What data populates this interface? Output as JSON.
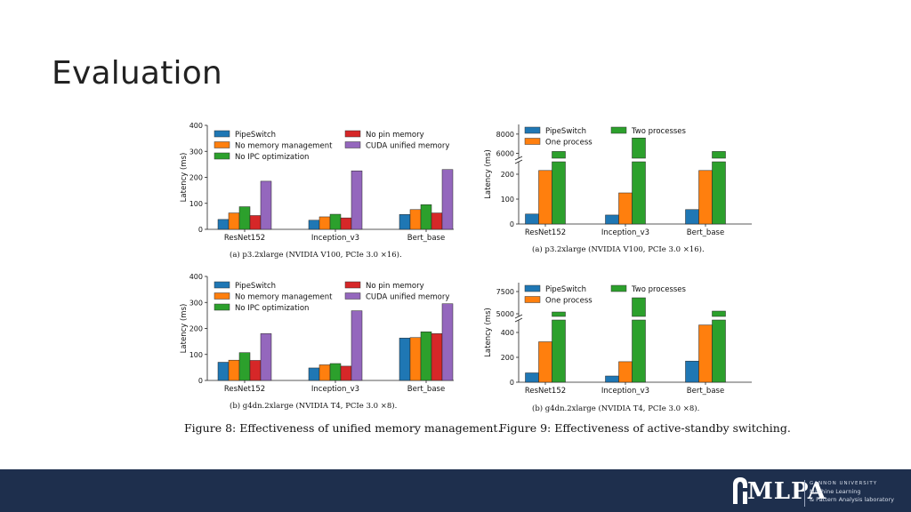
{
  "slide": {
    "title": "Evaluation"
  },
  "figures": {
    "fig8_caption": "Figure 8: Effectiveness of unified memory management.",
    "fig9_caption": "Figure 9: Effectiveness of active-standby switching."
  },
  "footer": {
    "logo_text": "MLPA",
    "logo_line1": "GANNON UNIVERSITY",
    "logo_line2": "Machine Learning",
    "logo_line3": "& Pattern Analysis laboratory",
    "background": "#1e2f4d"
  },
  "chart_data": [
    {
      "id": "fig8a",
      "type": "bar",
      "title": "",
      "caption": "(a) p3.2xlarge (NVIDIA V100, PCIe 3.0 ×16).",
      "xlabel": "",
      "ylabel": "Latency (ms)",
      "categories": [
        "ResNet152",
        "Inception_v3",
        "Bert_base"
      ],
      "ylim": [
        0,
        400
      ],
      "yticks": [
        0,
        100,
        200,
        300,
        400
      ],
      "series": [
        {
          "name": "PipeSwitch",
          "color": "#1f77b4",
          "values": [
            38,
            35,
            57
          ]
        },
        {
          "name": "No memory management",
          "color": "#ff7f0e",
          "values": [
            63,
            48,
            76
          ]
        },
        {
          "name": "No IPC optimization",
          "color": "#2ca02c",
          "values": [
            87,
            58,
            95
          ]
        },
        {
          "name": "No pin memory",
          "color": "#d62728",
          "values": [
            53,
            44,
            63
          ]
        },
        {
          "name": "CUDA unified memory",
          "color": "#9467bd",
          "values": [
            185,
            225,
            230
          ]
        }
      ],
      "legend_order": [
        "PipeSwitch",
        "No pin memory",
        "No memory management",
        "CUDA unified memory",
        "No IPC optimization"
      ]
    },
    {
      "id": "fig8b",
      "type": "bar",
      "title": "",
      "caption": "(b) g4dn.2xlarge (NVIDIA T4, PCIe 3.0 ×8).",
      "xlabel": "",
      "ylabel": "Latency (ms)",
      "categories": [
        "ResNet152",
        "Inception_v3",
        "Bert_base"
      ],
      "ylim": [
        0,
        400
      ],
      "yticks": [
        0,
        100,
        200,
        300,
        400
      ],
      "series": [
        {
          "name": "PipeSwitch",
          "color": "#1f77b4",
          "values": [
            70,
            48,
            163
          ]
        },
        {
          "name": "No memory management",
          "color": "#ff7f0e",
          "values": [
            78,
            60,
            165
          ]
        },
        {
          "name": "No IPC optimization",
          "color": "#2ca02c",
          "values": [
            107,
            65,
            187
          ]
        },
        {
          "name": "No pin memory",
          "color": "#d62728",
          "values": [
            77,
            55,
            180
          ]
        },
        {
          "name": "CUDA unified memory",
          "color": "#9467bd",
          "values": [
            180,
            268,
            295
          ]
        }
      ],
      "legend_order": [
        "PipeSwitch",
        "No pin memory",
        "No memory management",
        "CUDA unified memory",
        "No IPC optimization"
      ]
    },
    {
      "id": "fig9a",
      "type": "bar",
      "broken_axis": true,
      "title": "",
      "caption": "(a) p3.2xlarge (NVIDIA V100, PCIe 3.0 ×16).",
      "xlabel": "",
      "ylabel": "Latency (ms)",
      "categories": [
        "ResNet152",
        "Inception_v3",
        "Bert_base"
      ],
      "lower_ylim": [
        0,
        250
      ],
      "lower_ticks": [
        0,
        100,
        200
      ],
      "upper_ylim": [
        5500,
        9000
      ],
      "upper_ticks": [
        6000,
        8000
      ],
      "series": [
        {
          "name": "PipeSwitch",
          "color": "#1f77b4",
          "values": [
            40,
            36,
            58
          ]
        },
        {
          "name": "One process",
          "color": "#ff7f0e",
          "values": [
            215,
            125,
            215
          ]
        },
        {
          "name": "Two processes",
          "color": "#2ca02c",
          "values": [
            6200,
            7600,
            6200
          ]
        }
      ],
      "legend_order": [
        "PipeSwitch",
        "Two processes",
        "One process"
      ]
    },
    {
      "id": "fig9b",
      "type": "bar",
      "broken_axis": true,
      "title": "",
      "caption": "(b) g4dn.2xlarge (NVIDIA T4, PCIe 3.0 ×8).",
      "xlabel": "",
      "ylabel": "Latency (ms)",
      "categories": [
        "ResNet152",
        "Inception_v3",
        "Bert_base"
      ],
      "lower_ylim": [
        0,
        500
      ],
      "lower_ticks": [
        0,
        200,
        400
      ],
      "upper_ylim": [
        4700,
        8500
      ],
      "upper_ticks": [
        5000,
        7500
      ],
      "series": [
        {
          "name": "PipeSwitch",
          "color": "#1f77b4",
          "values": [
            75,
            50,
            170
          ]
        },
        {
          "name": "One process",
          "color": "#ff7f0e",
          "values": [
            325,
            165,
            460
          ]
        },
        {
          "name": "Two processes",
          "color": "#2ca02c",
          "values": [
            5200,
            6800,
            5300
          ]
        }
      ],
      "legend_order": [
        "PipeSwitch",
        "Two processes",
        "One process"
      ]
    }
  ]
}
